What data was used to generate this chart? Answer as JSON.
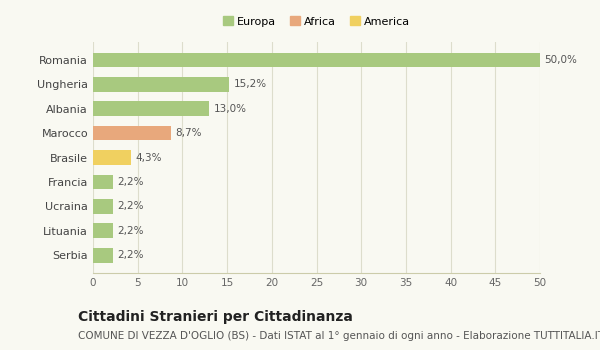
{
  "countries": [
    "Romania",
    "Ungheria",
    "Albania",
    "Marocco",
    "Brasile",
    "Francia",
    "Ucraina",
    "Lituania",
    "Serbia"
  ],
  "values": [
    50.0,
    15.2,
    13.0,
    8.7,
    4.3,
    2.2,
    2.2,
    2.2,
    2.2
  ],
  "labels": [
    "50,0%",
    "15,2%",
    "13,0%",
    "8,7%",
    "4,3%",
    "2,2%",
    "2,2%",
    "2,2%",
    "2,2%"
  ],
  "colors": [
    "#a8c97f",
    "#a8c97f",
    "#a8c97f",
    "#e8a87c",
    "#f0d060",
    "#a8c97f",
    "#a8c97f",
    "#a8c97f",
    "#a8c97f"
  ],
  "legend_labels": [
    "Europa",
    "Africa",
    "America"
  ],
  "legend_colors": [
    "#a8c97f",
    "#e8a87c",
    "#f0d060"
  ],
  "xlim": [
    0,
    50
  ],
  "xticks": [
    0,
    5,
    10,
    15,
    20,
    25,
    30,
    35,
    40,
    45,
    50
  ],
  "title": "Cittadini Stranieri per Cittadinanza",
  "subtitle": "COMUNE DI VEZZA D'OGLIO (BS) - Dati ISTAT al 1° gennaio di ogni anno - Elaborazione TUTTITALIA.IT",
  "background_color": "#f9f9f2",
  "grid_color": "#ddddcc",
  "bar_height": 0.6,
  "title_fontsize": 10,
  "subtitle_fontsize": 7.5,
  "label_fontsize": 7.5,
  "ytick_fontsize": 8,
  "xtick_fontsize": 7.5,
  "legend_fontsize": 8
}
